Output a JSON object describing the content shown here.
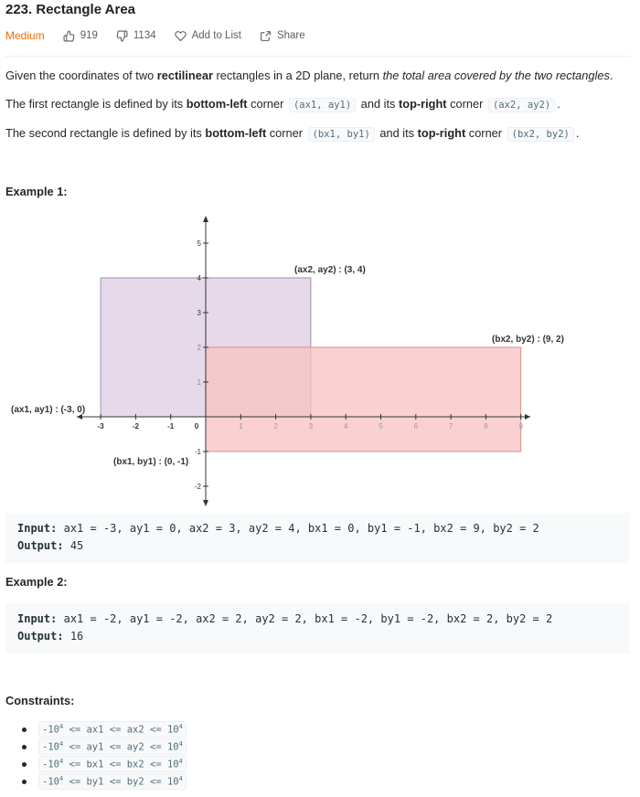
{
  "problem": {
    "title": "223. Rectangle Area",
    "difficulty": "Medium",
    "likes": "919",
    "dislikes": "1134",
    "add_to_list": "Add to List",
    "share": "Share"
  },
  "description": {
    "p1_pre": "Given the coordinates of two ",
    "p1_bold": "rectilinear",
    "p1_mid": " rectangles in a 2D plane, return ",
    "p1_italic": "the total area covered by the two rectangles",
    "p1_end": ".",
    "p2_pre": "The first rectangle is defined by its ",
    "p2_bold1": "bottom-left",
    "p2_mid1": " corner ",
    "p2_code1": "(ax1, ay1)",
    "p2_mid2": " and its ",
    "p2_bold2": "top-right",
    "p2_mid3": " corner ",
    "p2_code2": "(ax2, ay2)",
    "p2_end": ".",
    "p3_pre": "The second rectangle is defined by its ",
    "p3_bold1": "bottom-left",
    "p3_mid1": " corner ",
    "p3_code1": "(bx1, by1)",
    "p3_mid2": " and its ",
    "p3_bold2": "top-right",
    "p3_mid3": " corner ",
    "p3_code2": "(bx2, by2)",
    "p3_end": "."
  },
  "example1": {
    "title": "Example 1:",
    "input_label": "Input:",
    "input_value": "ax1 = -3, ay1 = 0, ax2 = 3, ay2 = 4, bx1 = 0, by1 = -1, bx2 = 9, by2 = 2",
    "output_label": "Output:",
    "output_value": "45"
  },
  "example2": {
    "title": "Example 2:",
    "input_label": "Input:",
    "input_value": "ax1 = -2, ay1 = -2, ax2 = 2, ay2 = 2, bx1 = -2, by1 = -2, bx2 = 2, by2 = 2",
    "output_label": "Output:",
    "output_value": "16"
  },
  "figure": {
    "rect_a": {
      "x1": -3,
      "y1": 0,
      "x2": 3,
      "y2": 4,
      "fill": "#e5d9ea",
      "stroke": "#a58fb0"
    },
    "rect_b": {
      "x1": 0,
      "y1": -1,
      "x2": 9,
      "y2": 2,
      "fill": "#f7c2c2",
      "stroke": "#dd8f8f"
    },
    "x_ticks": [
      "-3",
      "-2",
      "-1",
      "0",
      "1",
      "2",
      "3",
      "4",
      "5",
      "6",
      "7",
      "8",
      "9"
    ],
    "y_ticks": [
      "5",
      "4",
      "3",
      "2",
      "1",
      "-1",
      "-2"
    ],
    "label_ax2": "(ax2, ay2) : (3, 4)",
    "label_bx2": "(bx2, by2) : (9, 2)",
    "label_ax1": "(ax1, ay1) : (-3, 0)",
    "label_bx1": "(bx1, by1) : (0, -1)"
  },
  "constraints": {
    "title": "Constraints:",
    "items": [
      {
        "neg": "-10",
        "exp": "4",
        "expr": " <= ax1 <= ax2 <= 10",
        "exp2": "4"
      },
      {
        "neg": "-10",
        "exp": "4",
        "expr": " <= ay1 <= ay2 <= 10",
        "exp2": "4"
      },
      {
        "neg": "-10",
        "exp": "4",
        "expr": " <= bx1 <= bx2 <= 10",
        "exp2": "4"
      },
      {
        "neg": "-10",
        "exp": "4",
        "expr": " <= by1 <= by2 <= 10",
        "exp2": "4"
      }
    ]
  }
}
